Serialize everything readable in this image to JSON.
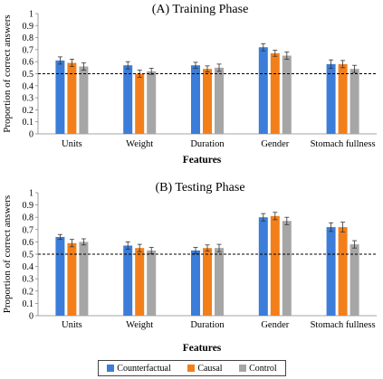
{
  "chart_data": [
    {
      "type": "bar",
      "title": "(A) Training Phase",
      "xlabel": "Features",
      "ylabel": "Proportion of correct answers",
      "ylim": [
        0,
        1
      ],
      "yticks": [
        "0",
        "0.1",
        "0.2",
        "0.3",
        "0.4",
        "0.5",
        "0.6",
        "0.7",
        "0.8",
        "0.9",
        "1"
      ],
      "reference_line": 0.5,
      "categories": [
        "Units",
        "Weight",
        "Duration",
        "Gender",
        "Stomach fullness"
      ],
      "series": [
        {
          "name": "Counterfactual",
          "values": [
            0.61,
            0.57,
            0.57,
            0.72,
            0.58
          ],
          "errors": [
            0.03,
            0.03,
            0.025,
            0.03,
            0.035
          ]
        },
        {
          "name": "Causal",
          "values": [
            0.59,
            0.5,
            0.54,
            0.67,
            0.58
          ],
          "errors": [
            0.03,
            0.03,
            0.025,
            0.025,
            0.03
          ]
        },
        {
          "name": "Control",
          "values": [
            0.56,
            0.52,
            0.55,
            0.65,
            0.54
          ],
          "errors": [
            0.03,
            0.025,
            0.03,
            0.03,
            0.03
          ]
        }
      ]
    },
    {
      "type": "bar",
      "title": "(B) Testing Phase",
      "xlabel": "Features",
      "ylabel": "Proportion of correct answers",
      "ylim": [
        0,
        1
      ],
      "yticks": [
        "0",
        "0.1",
        "0.2",
        "0.3",
        "0.4",
        "0.5",
        "0.6",
        "0.7",
        "0.8",
        "0.9",
        "1"
      ],
      "reference_line": 0.5,
      "categories": [
        "Units",
        "Weight",
        "Duration",
        "Gender",
        "Stomach fullness"
      ],
      "series": [
        {
          "name": "Counterfactual",
          "values": [
            0.64,
            0.57,
            0.53,
            0.8,
            0.72
          ],
          "errors": [
            0.02,
            0.03,
            0.025,
            0.03,
            0.035
          ]
        },
        {
          "name": "Causal",
          "values": [
            0.59,
            0.55,
            0.55,
            0.81,
            0.72
          ],
          "errors": [
            0.03,
            0.03,
            0.025,
            0.03,
            0.04
          ]
        },
        {
          "name": "Control",
          "values": [
            0.6,
            0.53,
            0.55,
            0.77,
            0.58
          ],
          "errors": [
            0.025,
            0.025,
            0.03,
            0.03,
            0.03
          ]
        }
      ]
    }
  ],
  "legend": {
    "items": [
      {
        "label": "Counterfactual",
        "color": "#3B7DD8"
      },
      {
        "label": "Causal",
        "color": "#F37F1B"
      },
      {
        "label": "Control",
        "color": "#A6A6A6"
      }
    ]
  }
}
